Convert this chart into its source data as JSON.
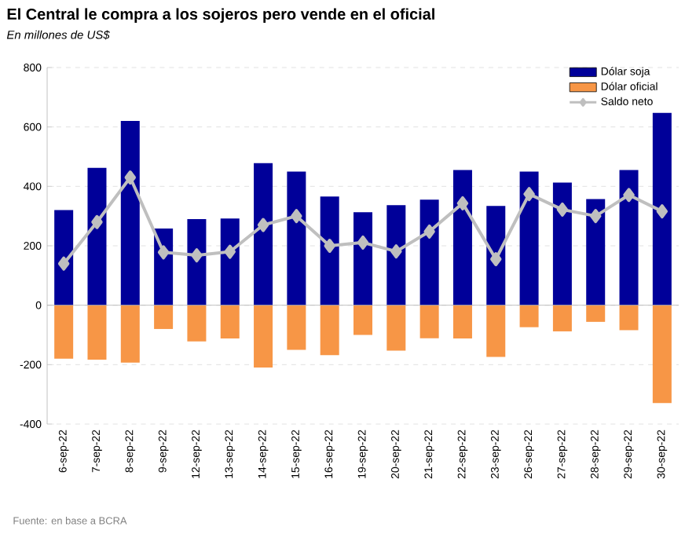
{
  "chart_data": {
    "type": "bar",
    "title": "El Central le compra a los sojeros pero vende en el oficial",
    "subtitle": "*En millones de US$*",
    "categories": [
      "6-sep-22",
      "7-sep-22",
      "8-sep-22",
      "9-sep-22",
      "12-sep-22",
      "13-sep-22",
      "14-sep-22",
      "15-sep-22",
      "16-sep-22",
      "19-sep-22",
      "20-sep-22",
      "21-sep-22",
      "22-sep-22",
      "23-sep-22",
      "26-sep-22",
      "27-sep-22",
      "28-sep-22",
      "29-sep-22",
      "30-sep-22"
    ],
    "series": [
      {
        "name": "Dólar soja",
        "color": "#000099",
        "values": [
          320,
          462,
          620,
          258,
          290,
          292,
          478,
          450,
          366,
          313,
          337,
          355,
          455,
          334,
          450,
          413,
          357,
          455,
          647
        ]
      },
      {
        "name": "Dólar oficial",
        "color": "#f79646",
        "values": [
          -180,
          -183,
          -193,
          -80,
          -122,
          -112,
          -210,
          -150,
          -168,
          -100,
          -153,
          -111,
          -112,
          -174,
          -74,
          -88,
          -56,
          -84,
          -329
        ]
      },
      {
        "name": "Saldo neto",
        "type": "line",
        "color": "#bfbfbf",
        "marker": "diamond",
        "values": [
          140,
          280,
          430,
          178,
          168,
          180,
          270,
          300,
          200,
          211,
          181,
          248,
          343,
          155,
          374,
          322,
          300,
          371,
          316
        ]
      }
    ],
    "stacked": true,
    "ylim": [
      -400,
      800
    ],
    "yticks": [
      -400,
      -200,
      0,
      200,
      400,
      600,
      800
    ],
    "grid": "y",
    "legend": "top right",
    "annotations": [
      "Fuente: en base a BCRA"
    ]
  }
}
